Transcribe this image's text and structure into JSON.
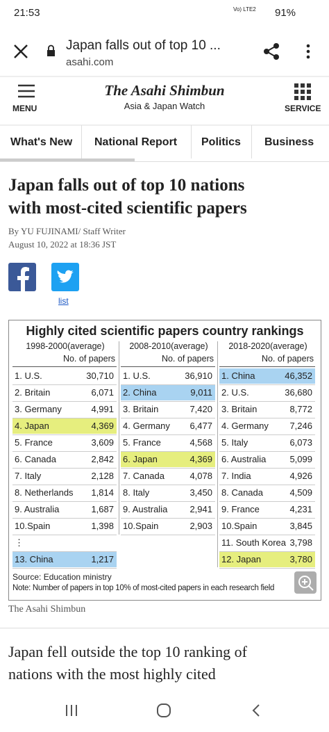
{
  "status": {
    "time": "21:53",
    "network": "Vo) LTE2",
    "battery": "91%"
  },
  "browser": {
    "title": "Japan falls out of top 10 ...",
    "url": "asahi.com"
  },
  "header": {
    "menu": "MENU",
    "logo": "The Asahi Shimbun",
    "subtitle": "Asia & Japan Watch",
    "service": "SERVICE"
  },
  "nav": [
    "What's New",
    "National Report",
    "Politics",
    "Business"
  ],
  "article": {
    "headline": [
      "Japan falls out of top 10 nations",
      "with most-cited scientific papers"
    ],
    "byline": "By YU FUJINAMI/ Staff Writer",
    "date": "August 10, 2022 at 18:36 JST",
    "share_link": "list",
    "figure": {
      "title": "Highly cited scientific papers country rankings",
      "columns": [
        {
          "period": "1998-2000(average)",
          "unit": "No. of papers",
          "rows": [
            {
              "rank": "1. U.S.",
              "papers": "30,710"
            },
            {
              "rank": "2. Britain",
              "papers": "6,071"
            },
            {
              "rank": "3. Germany",
              "papers": "4,991"
            },
            {
              "rank": "4. Japan",
              "papers": "4,369",
              "color": "#e6ee7e"
            },
            {
              "rank": "5. France",
              "papers": "3,609"
            },
            {
              "rank": "6. Canada",
              "papers": "2,842"
            },
            {
              "rank": "7. Italy",
              "papers": "2,128"
            },
            {
              "rank": "8. Netherlands",
              "papers": "1,814"
            },
            {
              "rank": "9. Australia",
              "papers": "1,687"
            },
            {
              "rank": "10.Spain",
              "papers": "1,398"
            },
            {
              "rank": "⋮"
            },
            {
              "rank": "13. China",
              "papers": "1,217",
              "color": "#a9d3f1"
            }
          ]
        },
        {
          "period": "2008-2010(average)",
          "unit": "No. of papers",
          "rows": [
            {
              "rank": "1. U.S.",
              "papers": "36,910"
            },
            {
              "rank": "2. China",
              "papers": "9,011",
              "color": "#a9d3f1"
            },
            {
              "rank": "3. Britain",
              "papers": "7,420"
            },
            {
              "rank": "4. Germany",
              "papers": "6,477"
            },
            {
              "rank": "5. France",
              "papers": "4,568"
            },
            {
              "rank": "6. Japan",
              "papers": "4,369",
              "color": "#e6ee7e"
            },
            {
              "rank": "7. Canada",
              "papers": "4,078"
            },
            {
              "rank": "8. Italy",
              "papers": "3,450"
            },
            {
              "rank": "9. Australia",
              "papers": "2,941"
            },
            {
              "rank": "10.Spain",
              "papers": "2,903"
            }
          ]
        },
        {
          "period": "2018-2020(average)",
          "unit": "No. of papers",
          "rows": [
            {
              "rank": "1. China",
              "papers": "46,352",
              "color": "#a9d3f1"
            },
            {
              "rank": "2. U.S.",
              "papers": "36,680"
            },
            {
              "rank": "3. Britain",
              "papers": "8,772"
            },
            {
              "rank": "4. Germany",
              "papers": "7,246"
            },
            {
              "rank": "5. Italy",
              "papers": "6,073"
            },
            {
              "rank": "6. Australia",
              "papers": "5,099"
            },
            {
              "rank": "7. India",
              "papers": "4,926"
            },
            {
              "rank": "8. Canada",
              "papers": "4,509"
            },
            {
              "rank": "9. France",
              "papers": "4,231"
            },
            {
              "rank": "10.Spain",
              "papers": "3,845"
            },
            {
              "rank": "11. South Korea",
              "papers": "3,798"
            },
            {
              "rank": "12. Japan",
              "papers": "3,780",
              "color": "#e6ee7e"
            }
          ]
        }
      ],
      "source": "Source: Education ministry",
      "note": "Note: Number of papers in top 10% of most-cited papers in each research field"
    },
    "credit": "The Asahi Shimbun",
    "body": [
      "Japan fell outside the top 10 ranking of",
      "nations with the most highly cited"
    ]
  }
}
